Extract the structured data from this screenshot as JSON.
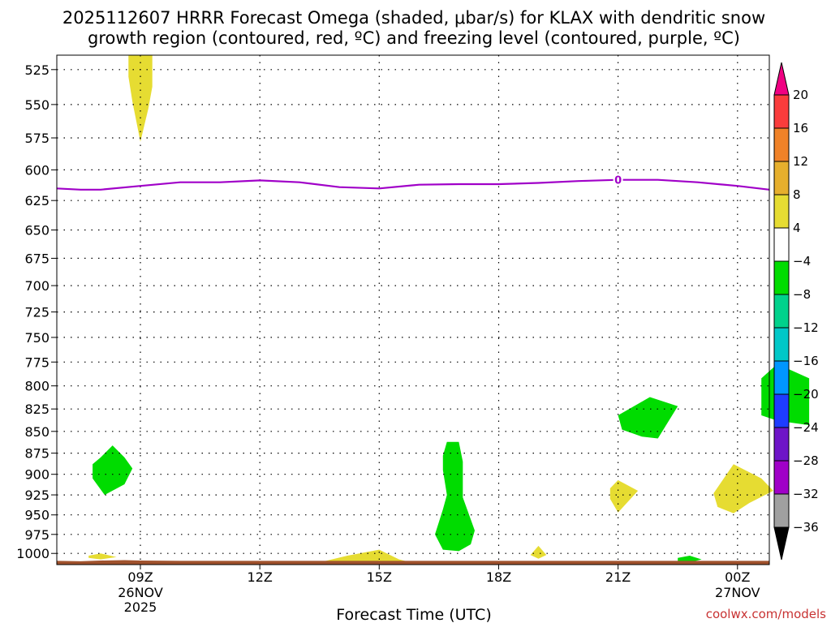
{
  "chart_data": {
    "type": "heatmap",
    "title": {
      "line1": "2025112607 HRRR Forecast Omega (shaded, μbar/s) for KLAX with dendritic snow",
      "line2": "growth region (contoured, red, ºC) and freezing level (contoured, purple, ºC)"
    },
    "xlabel": "Forecast Time (UTC)",
    "credit": "coolwx.com/models",
    "y_axis": {
      "scale": "log-pressure",
      "inverted": true,
      "range_hPa": [
        515,
        1015
      ],
      "ticks": [
        525,
        550,
        575,
        600,
        625,
        650,
        675,
        700,
        725,
        750,
        775,
        800,
        825,
        850,
        875,
        900,
        925,
        950,
        975,
        1000
      ]
    },
    "x_axis": {
      "range_hours_from_init": [
        -0.1,
        17.8
      ],
      "ticks": [
        {
          "h": 2,
          "label": "09Z",
          "sub": "26NOV",
          "sub2": "2025"
        },
        {
          "h": 5,
          "label": "12Z",
          "sub": "",
          "sub2": ""
        },
        {
          "h": 8,
          "label": "15Z",
          "sub": "",
          "sub2": ""
        },
        {
          "h": 11,
          "label": "18Z",
          "sub": "",
          "sub2": ""
        },
        {
          "h": 14,
          "label": "21Z",
          "sub": "",
          "sub2": ""
        },
        {
          "h": 17,
          "label": "00Z",
          "sub": "27NOV",
          "sub2": ""
        }
      ]
    },
    "grid": true,
    "colorbar": {
      "position": "right",
      "bins": [
        {
          "from": -40,
          "to": -36,
          "color": "#000000"
        },
        {
          "from": -36,
          "to": -32,
          "color": "#a0a0a0"
        },
        {
          "from": -32,
          "to": -28,
          "color": "#a000c8"
        },
        {
          "from": -28,
          "to": -24,
          "color": "#6e14c8"
        },
        {
          "from": -24,
          "to": -20,
          "color": "#1e3cff"
        },
        {
          "from": -20,
          "to": -16,
          "color": "#0096ff"
        },
        {
          "from": -16,
          "to": -12,
          "color": "#00c8c8"
        },
        {
          "from": -12,
          "to": -8,
          "color": "#00d28c"
        },
        {
          "from": -8,
          "to": -4,
          "color": "#00dc00"
        },
        {
          "from": -4,
          "to": 4,
          "color": "#ffffff"
        },
        {
          "from": 4,
          "to": 8,
          "color": "#e6dc32"
        },
        {
          "from": 8,
          "to": 12,
          "color": "#e6af2d"
        },
        {
          "from": 12,
          "to": 16,
          "color": "#f08228"
        },
        {
          "from": 16,
          "to": 20,
          "color": "#fa3c3c"
        },
        {
          "from": 20,
          "to": 24,
          "color": "#f00082"
        }
      ],
      "tick_labels": [
        "20",
        "16",
        "12",
        "8",
        "4",
        "−4",
        "−8",
        "−12",
        "−16",
        "−20",
        "−24",
        "−28",
        "−32",
        "−36"
      ]
    },
    "omega_regions": [
      {
        "sign": "positive",
        "color": "#e6dc32",
        "points": [
          [
            1.7,
            515
          ],
          [
            2.3,
            515
          ],
          [
            2.3,
            537
          ],
          [
            2.2,
            553
          ],
          [
            2.0,
            578
          ],
          [
            1.8,
            548
          ],
          [
            1.7,
            530
          ]
        ]
      },
      {
        "sign": "negative",
        "color": "#00dc00",
        "points": [
          [
            1.0,
            880
          ],
          [
            1.3,
            866
          ],
          [
            1.6,
            880
          ],
          [
            1.8,
            893
          ],
          [
            1.6,
            912
          ],
          [
            1.1,
            925
          ],
          [
            0.8,
            905
          ],
          [
            0.8,
            888
          ]
        ]
      },
      {
        "sign": "positive",
        "color": "#e6dc32",
        "points": [
          [
            0.7,
            1003
          ],
          [
            1.0,
            1000
          ],
          [
            1.4,
            1005
          ],
          [
            1.0,
            1008
          ],
          [
            0.7,
            1006
          ]
        ]
      },
      {
        "sign": "positive",
        "color": "#e6dc32",
        "points": [
          [
            6.5,
            1012
          ],
          [
            7.2,
            1003
          ],
          [
            8.0,
            995
          ],
          [
            8.5,
            1008
          ],
          [
            8.8,
            1012
          ]
        ]
      },
      {
        "sign": "negative",
        "color": "#00dc00",
        "points": [
          [
            9.7,
            862
          ],
          [
            10.0,
            862
          ],
          [
            10.1,
            885
          ],
          [
            10.1,
            928
          ],
          [
            10.4,
            970
          ],
          [
            10.3,
            988
          ],
          [
            10.0,
            997
          ],
          [
            9.6,
            995
          ],
          [
            9.4,
            975
          ],
          [
            9.6,
            943
          ],
          [
            9.7,
            925
          ],
          [
            9.6,
            895
          ],
          [
            9.6,
            878
          ]
        ]
      },
      {
        "sign": "positive",
        "color": "#e6dc32",
        "points": [
          [
            11.8,
            1002
          ],
          [
            12.0,
            990
          ],
          [
            12.2,
            1002
          ],
          [
            12.0,
            1007
          ]
        ]
      },
      {
        "sign": "positive",
        "color": "#e6dc32",
        "points": [
          [
            13.8,
            917
          ],
          [
            14.0,
            907
          ],
          [
            14.5,
            920
          ],
          [
            14.0,
            947
          ],
          [
            13.8,
            930
          ]
        ]
      },
      {
        "sign": "negative",
        "color": "#00dc00",
        "points": [
          [
            14.0,
            832
          ],
          [
            14.8,
            812
          ],
          [
            15.5,
            822
          ],
          [
            15.0,
            858
          ],
          [
            14.6,
            856
          ],
          [
            14.1,
            848
          ]
        ]
      },
      {
        "sign": "negative",
        "color": "#00dc00",
        "points": [
          [
            15.5,
            1006
          ],
          [
            15.8,
            1003
          ],
          [
            16.1,
            1008
          ],
          [
            15.8,
            1012
          ],
          [
            15.5,
            1010
          ]
        ]
      },
      {
        "sign": "positive",
        "color": "#e6dc32",
        "points": [
          [
            16.4,
            923
          ],
          [
            16.9,
            888
          ],
          [
            17.6,
            905
          ],
          [
            17.9,
            920
          ],
          [
            17.3,
            935
          ],
          [
            16.9,
            948
          ],
          [
            16.5,
            940
          ]
        ]
      },
      {
        "sign": "negative",
        "color": "#00dc00",
        "points": [
          [
            17.6,
            792
          ],
          [
            18.0,
            777
          ],
          [
            18.8,
            792
          ],
          [
            18.8,
            843
          ],
          [
            18.0,
            838
          ],
          [
            17.6,
            832
          ],
          [
            17.6,
            812
          ]
        ]
      }
    ],
    "freezing_level": {
      "label": "0",
      "color": "#a000c8",
      "label_at": [
        14.0,
        608
      ],
      "points": [
        [
          -0.1,
          615
        ],
        [
          0.5,
          616
        ],
        [
          1.0,
          616
        ],
        [
          2.0,
          613
        ],
        [
          3.0,
          610
        ],
        [
          4.0,
          610
        ],
        [
          5.0,
          608.5
        ],
        [
          6.0,
          610
        ],
        [
          7.0,
          614
        ],
        [
          8.0,
          615
        ],
        [
          9.0,
          612
        ],
        [
          10.0,
          611.5
        ],
        [
          11.0,
          611.5
        ],
        [
          12.0,
          610.5
        ],
        [
          13.0,
          609
        ],
        [
          14.0,
          608
        ],
        [
          15.0,
          608
        ],
        [
          16.0,
          610
        ],
        [
          17.0,
          613
        ],
        [
          17.8,
          616
        ]
      ]
    },
    "surface": {
      "color": "#a0522d",
      "points": [
        [
          -0.1,
          1015
        ],
        [
          -0.1,
          1010
        ],
        [
          0.5,
          1010.5
        ],
        [
          1.0,
          1009.5
        ],
        [
          1.6,
          1009
        ],
        [
          2.0,
          1009.5
        ],
        [
          3.0,
          1010
        ],
        [
          17.8,
          1010
        ],
        [
          17.8,
          1015
        ]
      ]
    }
  }
}
